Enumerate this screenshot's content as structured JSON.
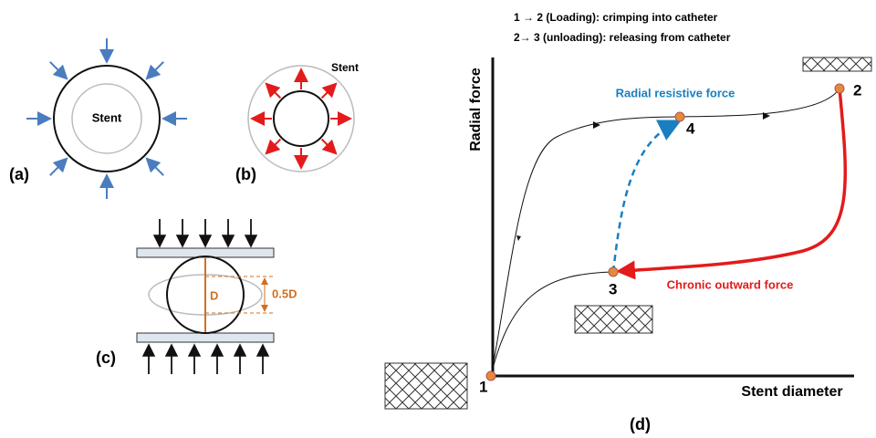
{
  "panel_a": {
    "label": "Stent",
    "caption": "(a)"
  },
  "panel_b": {
    "label": "Stent",
    "caption": "(b)"
  },
  "panel_c": {
    "diameter": "D",
    "compression": "0.5D",
    "caption": "(c)"
  },
  "panel_d": {
    "legend": [
      "1 → 2 (Loading): crimping into catheter",
      "2→ 3 (unloading): releasing from catheter"
    ],
    "y_axis": "Radial force",
    "x_axis": "Stent diameter",
    "resistive": "Radial resistive force",
    "outward": "Chronic outward force",
    "points": [
      "1",
      "2",
      "3",
      "4"
    ],
    "caption": "(d)"
  }
}
